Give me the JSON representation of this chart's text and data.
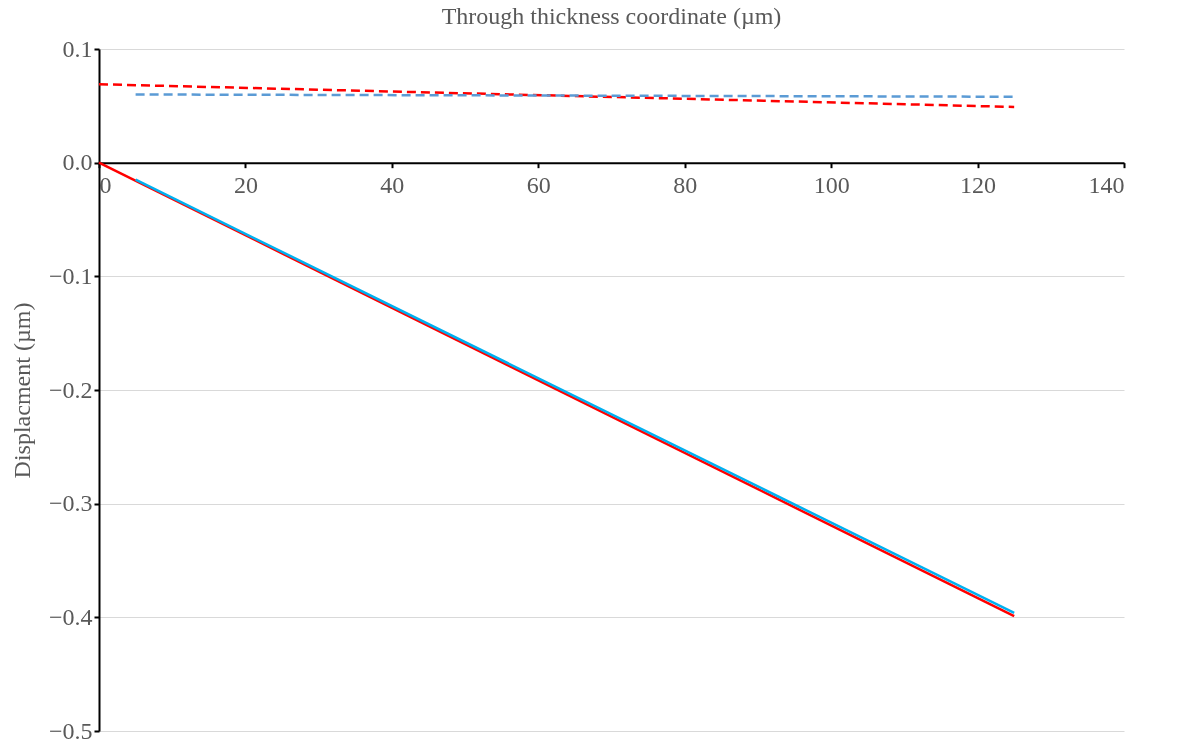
{
  "chart_data": {
    "type": "line",
    "xlabel": "Through thickness coordinate (µm)",
    "ylabel": "Displacment (µm)",
    "series": [
      {
        "color": "#ff0000",
        "line_style": "dashed",
        "x": [
          0,
          125
        ],
        "values": [
          0.069,
          0.049
        ]
      },
      {
        "color": "#5b9bd5",
        "line_style": "dashed",
        "x": [
          5,
          125
        ],
        "values": [
          0.06,
          0.058
        ]
      },
      {
        "color": "#ff0000",
        "line_style": "solid",
        "x": [
          0,
          125
        ],
        "values": [
          0,
          -0.399
        ]
      },
      {
        "color": "#00b0f0",
        "line_style": "solid",
        "x": [
          5,
          125
        ],
        "values": [
          -0.015,
          -0.396
        ]
      }
    ],
    "xlim": [
      0,
      140
    ],
    "xticks": [
      0,
      20,
      40,
      60,
      80,
      100,
      120,
      140
    ],
    "ylim": [
      -0.5,
      0.1
    ],
    "yticks": [
      -0.5,
      -0.4,
      -0.3,
      -0.2,
      -0.1,
      {
        "value": 0,
        "label": "0.0"
      },
      0.1
    ],
    "grid": "y",
    "legend": false,
    "marker": "none"
  }
}
